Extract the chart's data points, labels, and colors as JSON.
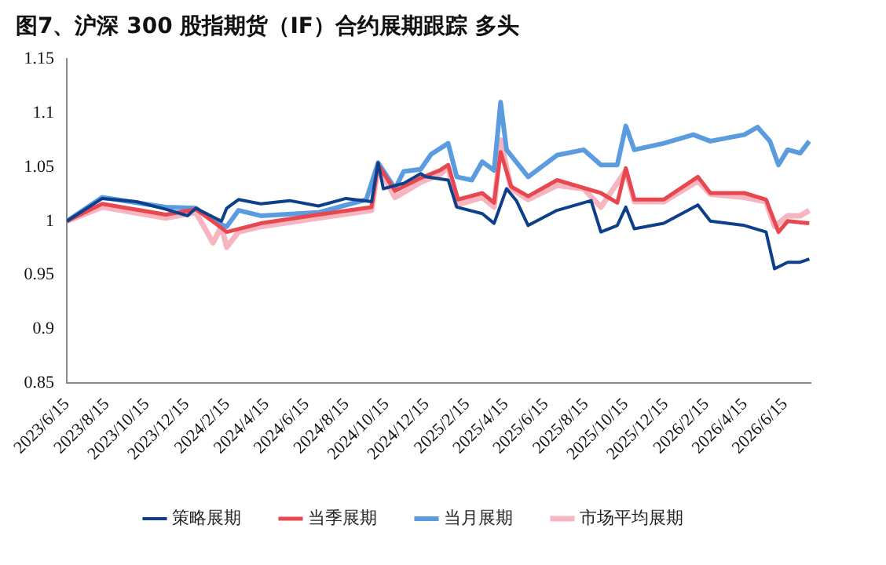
{
  "chart_data": {
    "type": "line",
    "title": "图7、沪深 300 股指期货（IF）合约展期跟踪 多头",
    "xlim": [
      "2023-06-15",
      "2026-07-24"
    ],
    "xticks": [
      {
        "value": "2023-06-15",
        "label": "2023/6/15"
      },
      {
        "value": "2023-08-15",
        "label": "2023/8/15"
      },
      {
        "value": "2023-10-15",
        "label": "2023/10/15"
      },
      {
        "value": "2023-12-15",
        "label": "2023/12/15"
      },
      {
        "value": "2024-02-15",
        "label": "2024/2/15"
      },
      {
        "value": "2024-04-15",
        "label": "2024/4/15"
      },
      {
        "value": "2024-06-15",
        "label": "2024/6/15"
      },
      {
        "value": "2024-08-15",
        "label": "2024/8/15"
      },
      {
        "value": "2024-10-15",
        "label": "2024/10/15"
      },
      {
        "value": "2024-12-15",
        "label": "2024/12/15"
      },
      {
        "value": "2025-02-15",
        "label": "2025/2/15"
      },
      {
        "value": "2025-04-15",
        "label": "2025/4/15"
      },
      {
        "value": "2025-06-15",
        "label": "2025/6/15"
      },
      {
        "value": "2025-08-15",
        "label": "2025/8/15"
      },
      {
        "value": "2025-10-15",
        "label": "2025/10/15"
      },
      {
        "value": "2025-12-15",
        "label": "2025/12/15"
      },
      {
        "value": "2026-02-15",
        "label": "2026/2/15"
      },
      {
        "value": "2026-04-15",
        "label": "2026/4/15"
      },
      {
        "value": "2026-06-15",
        "label": "2026/6/15"
      }
    ],
    "ylim": [
      0.85,
      1.15
    ],
    "yticks": [
      0.85,
      0.9,
      0.95,
      1,
      1.05,
      1.1,
      1.15
    ],
    "legend": "bottom",
    "series": [
      {
        "name": "策略展期",
        "color": "#0d3f8a",
        "x": [
          "2023-06-15",
          "2023-08-08",
          "2023-09-29",
          "2023-11-13",
          "2023-12-16",
          "2023-12-29",
          "2024-01-30",
          "2024-02-06",
          "2024-02-14",
          "2024-03-03",
          "2024-04-06",
          "2024-05-20",
          "2024-07-03",
          "2024-08-14",
          "2024-09-22",
          "2024-10-02",
          "2024-10-10",
          "2024-11-10",
          "2024-12-06",
          "2024-12-14",
          "2025-01-17",
          "2025-01-30",
          "2025-03-10",
          "2025-03-28",
          "2025-04-16",
          "2025-05-01",
          "2025-05-19",
          "2025-07-02",
          "2025-08-23",
          "2025-09-07",
          "2025-10-02",
          "2025-10-15",
          "2025-10-28",
          "2025-12-12",
          "2026-02-02",
          "2026-02-21",
          "2026-04-14",
          "2026-05-17",
          "2026-05-30",
          "2026-06-19",
          "2026-07-08",
          "2026-07-22"
        ],
        "values": [
          1.0,
          1.021,
          1.018,
          1.011,
          1.005,
          1.012,
          1.002,
          1.0,
          1.012,
          1.02,
          1.016,
          1.019,
          1.014,
          1.021,
          1.018,
          1.054,
          1.03,
          1.035,
          1.044,
          1.041,
          1.038,
          1.013,
          1.007,
          0.998,
          1.03,
          1.019,
          0.996,
          1.01,
          1.019,
          0.99,
          0.996,
          1.013,
          0.993,
          0.998,
          1.015,
          1.0,
          0.996,
          0.99,
          0.956,
          0.962,
          0.962,
          0.965
        ]
      },
      {
        "name": "当季展期",
        "color": "#e8474f",
        "x": [
          "2023-06-15",
          "2023-08-08",
          "2023-11-13",
          "2023-12-29",
          "2024-01-30",
          "2024-02-14",
          "2024-04-06",
          "2024-07-03",
          "2024-09-22",
          "2024-10-02",
          "2024-10-28",
          "2024-12-06",
          "2025-01-04",
          "2025-01-17",
          "2025-02-01",
          "2025-03-10",
          "2025-03-28",
          "2025-04-07",
          "2025-04-23",
          "2025-05-19",
          "2025-07-02",
          "2025-09-07",
          "2025-10-02",
          "2025-10-15",
          "2025-10-28",
          "2025-12-12",
          "2026-02-02",
          "2026-02-21",
          "2026-04-14",
          "2026-05-17",
          "2026-06-05",
          "2026-06-19",
          "2026-07-22"
        ],
        "values": [
          1.0,
          1.016,
          1.006,
          1.011,
          0.997,
          0.99,
          0.998,
          1.006,
          1.013,
          1.052,
          1.028,
          1.04,
          1.047,
          1.052,
          1.02,
          1.026,
          1.017,
          1.064,
          1.032,
          1.023,
          1.038,
          1.026,
          1.017,
          1.049,
          1.02,
          1.02,
          1.041,
          1.026,
          1.026,
          1.02,
          0.99,
          1.0,
          0.998
        ]
      },
      {
        "name": "当月展期",
        "color": "#5b9bdf",
        "x": [
          "2023-06-15",
          "2023-08-08",
          "2023-11-13",
          "2023-12-29",
          "2024-01-30",
          "2024-02-14",
          "2024-03-03",
          "2024-04-06",
          "2024-07-03",
          "2024-09-14",
          "2024-10-02",
          "2024-10-28",
          "2024-11-10",
          "2024-12-06",
          "2024-12-22",
          "2025-01-17",
          "2025-01-30",
          "2025-02-22",
          "2025-03-10",
          "2025-03-28",
          "2025-04-07",
          "2025-04-16",
          "2025-05-19",
          "2025-07-02",
          "2025-08-12",
          "2025-09-07",
          "2025-10-02",
          "2025-10-15",
          "2025-10-28",
          "2025-12-12",
          "2026-01-26",
          "2026-02-21",
          "2026-04-14",
          "2026-05-04",
          "2026-05-23",
          "2026-06-05",
          "2026-06-19",
          "2026-07-08",
          "2026-07-22"
        ],
        "values": [
          1.0,
          1.022,
          1.013,
          1.012,
          0.998,
          0.995,
          1.01,
          1.005,
          1.008,
          1.02,
          1.054,
          1.03,
          1.046,
          1.048,
          1.062,
          1.072,
          1.041,
          1.038,
          1.055,
          1.047,
          1.11,
          1.066,
          1.041,
          1.061,
          1.066,
          1.052,
          1.052,
          1.088,
          1.066,
          1.072,
          1.08,
          1.074,
          1.08,
          1.087,
          1.074,
          1.052,
          1.066,
          1.063,
          1.074
        ]
      },
      {
        "name": "市场平均展期",
        "color": "#f7b5c0",
        "x": [
          "2023-06-15",
          "2023-08-08",
          "2023-11-13",
          "2023-12-29",
          "2024-01-24",
          "2024-02-06",
          "2024-02-14",
          "2024-03-03",
          "2024-04-06",
          "2024-07-03",
          "2024-09-22",
          "2024-10-02",
          "2024-10-28",
          "2024-12-06",
          "2025-01-04",
          "2025-01-17",
          "2025-01-30",
          "2025-03-10",
          "2025-03-28",
          "2025-04-07",
          "2025-04-23",
          "2025-05-19",
          "2025-07-02",
          "2025-08-12",
          "2025-09-07",
          "2025-10-15",
          "2025-10-28",
          "2025-12-12",
          "2026-02-02",
          "2026-02-21",
          "2026-04-14",
          "2026-05-17",
          "2026-05-30",
          "2026-06-19",
          "2026-07-08",
          "2026-07-22"
        ],
        "values": [
          1.0,
          1.013,
          1.003,
          1.008,
          0.98,
          0.995,
          0.976,
          0.99,
          0.995,
          1.003,
          1.01,
          1.05,
          1.022,
          1.036,
          1.043,
          1.05,
          1.015,
          1.022,
          1.013,
          1.075,
          1.03,
          1.02,
          1.033,
          1.03,
          1.013,
          1.047,
          1.018,
          1.018,
          1.037,
          1.025,
          1.022,
          1.018,
          0.995,
          1.005,
          1.005,
          1.01
        ]
      }
    ]
  }
}
